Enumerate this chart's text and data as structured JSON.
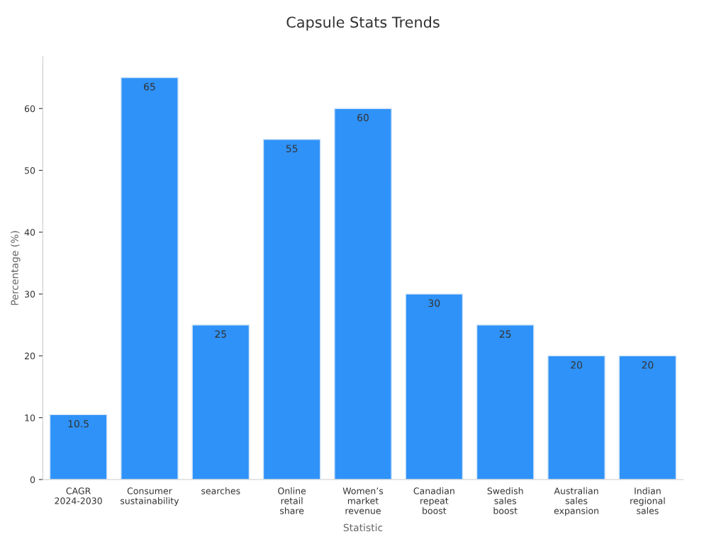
{
  "chart_data": {
    "type": "bar",
    "title": "Capsule Stats Trends",
    "xlabel": "Statistic",
    "ylabel": "Percentage (%)",
    "categories": [
      "CAGR\n2024-2030",
      "Consumer\nsustainability",
      "searches",
      "Online\nretail\nshare",
      "Women’s\nmarket\nrevenue",
      "Canadian\nrepeat\nboost",
      "Swedish\nsales\nboost",
      "Australian\nsales\nexpansion",
      "Indian\nregional\nsales"
    ],
    "values": [
      10.5,
      65,
      25,
      55,
      60,
      30,
      25,
      20,
      20
    ],
    "color": "#2f92f8",
    "ylim": [
      0,
      68.4
    ],
    "yticks": [
      0,
      10,
      20,
      30,
      40,
      50,
      60
    ],
    "grid": false,
    "legend": false,
    "data_labels": true
  }
}
